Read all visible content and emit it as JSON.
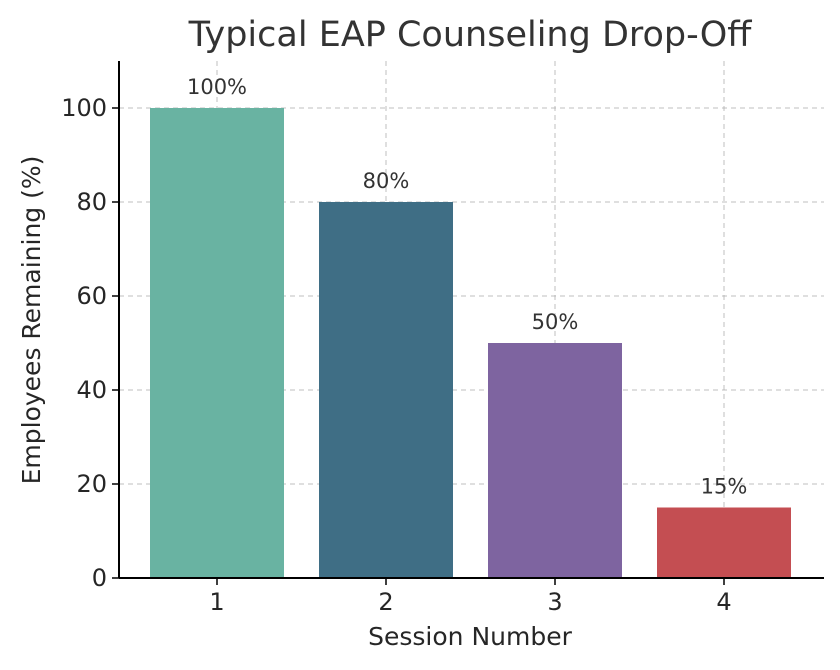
{
  "chart_data": {
    "type": "bar",
    "title": "Typical EAP Counseling Drop-Off",
    "xlabel": "Session Number",
    "ylabel": "Employees Remaining (%)",
    "categories": [
      "1",
      "2",
      "3",
      "4"
    ],
    "values": [
      100,
      80,
      50,
      15
    ],
    "data_labels": [
      "100%",
      "80%",
      "50%",
      "15%"
    ],
    "colors": [
      "#69b3a2",
      "#3f6e85",
      "#7e64a0",
      "#c44e52"
    ],
    "ylim": [
      0,
      110
    ],
    "yticks": [
      0,
      20,
      40,
      60,
      80,
      100
    ],
    "grid": true,
    "legend": "none"
  }
}
